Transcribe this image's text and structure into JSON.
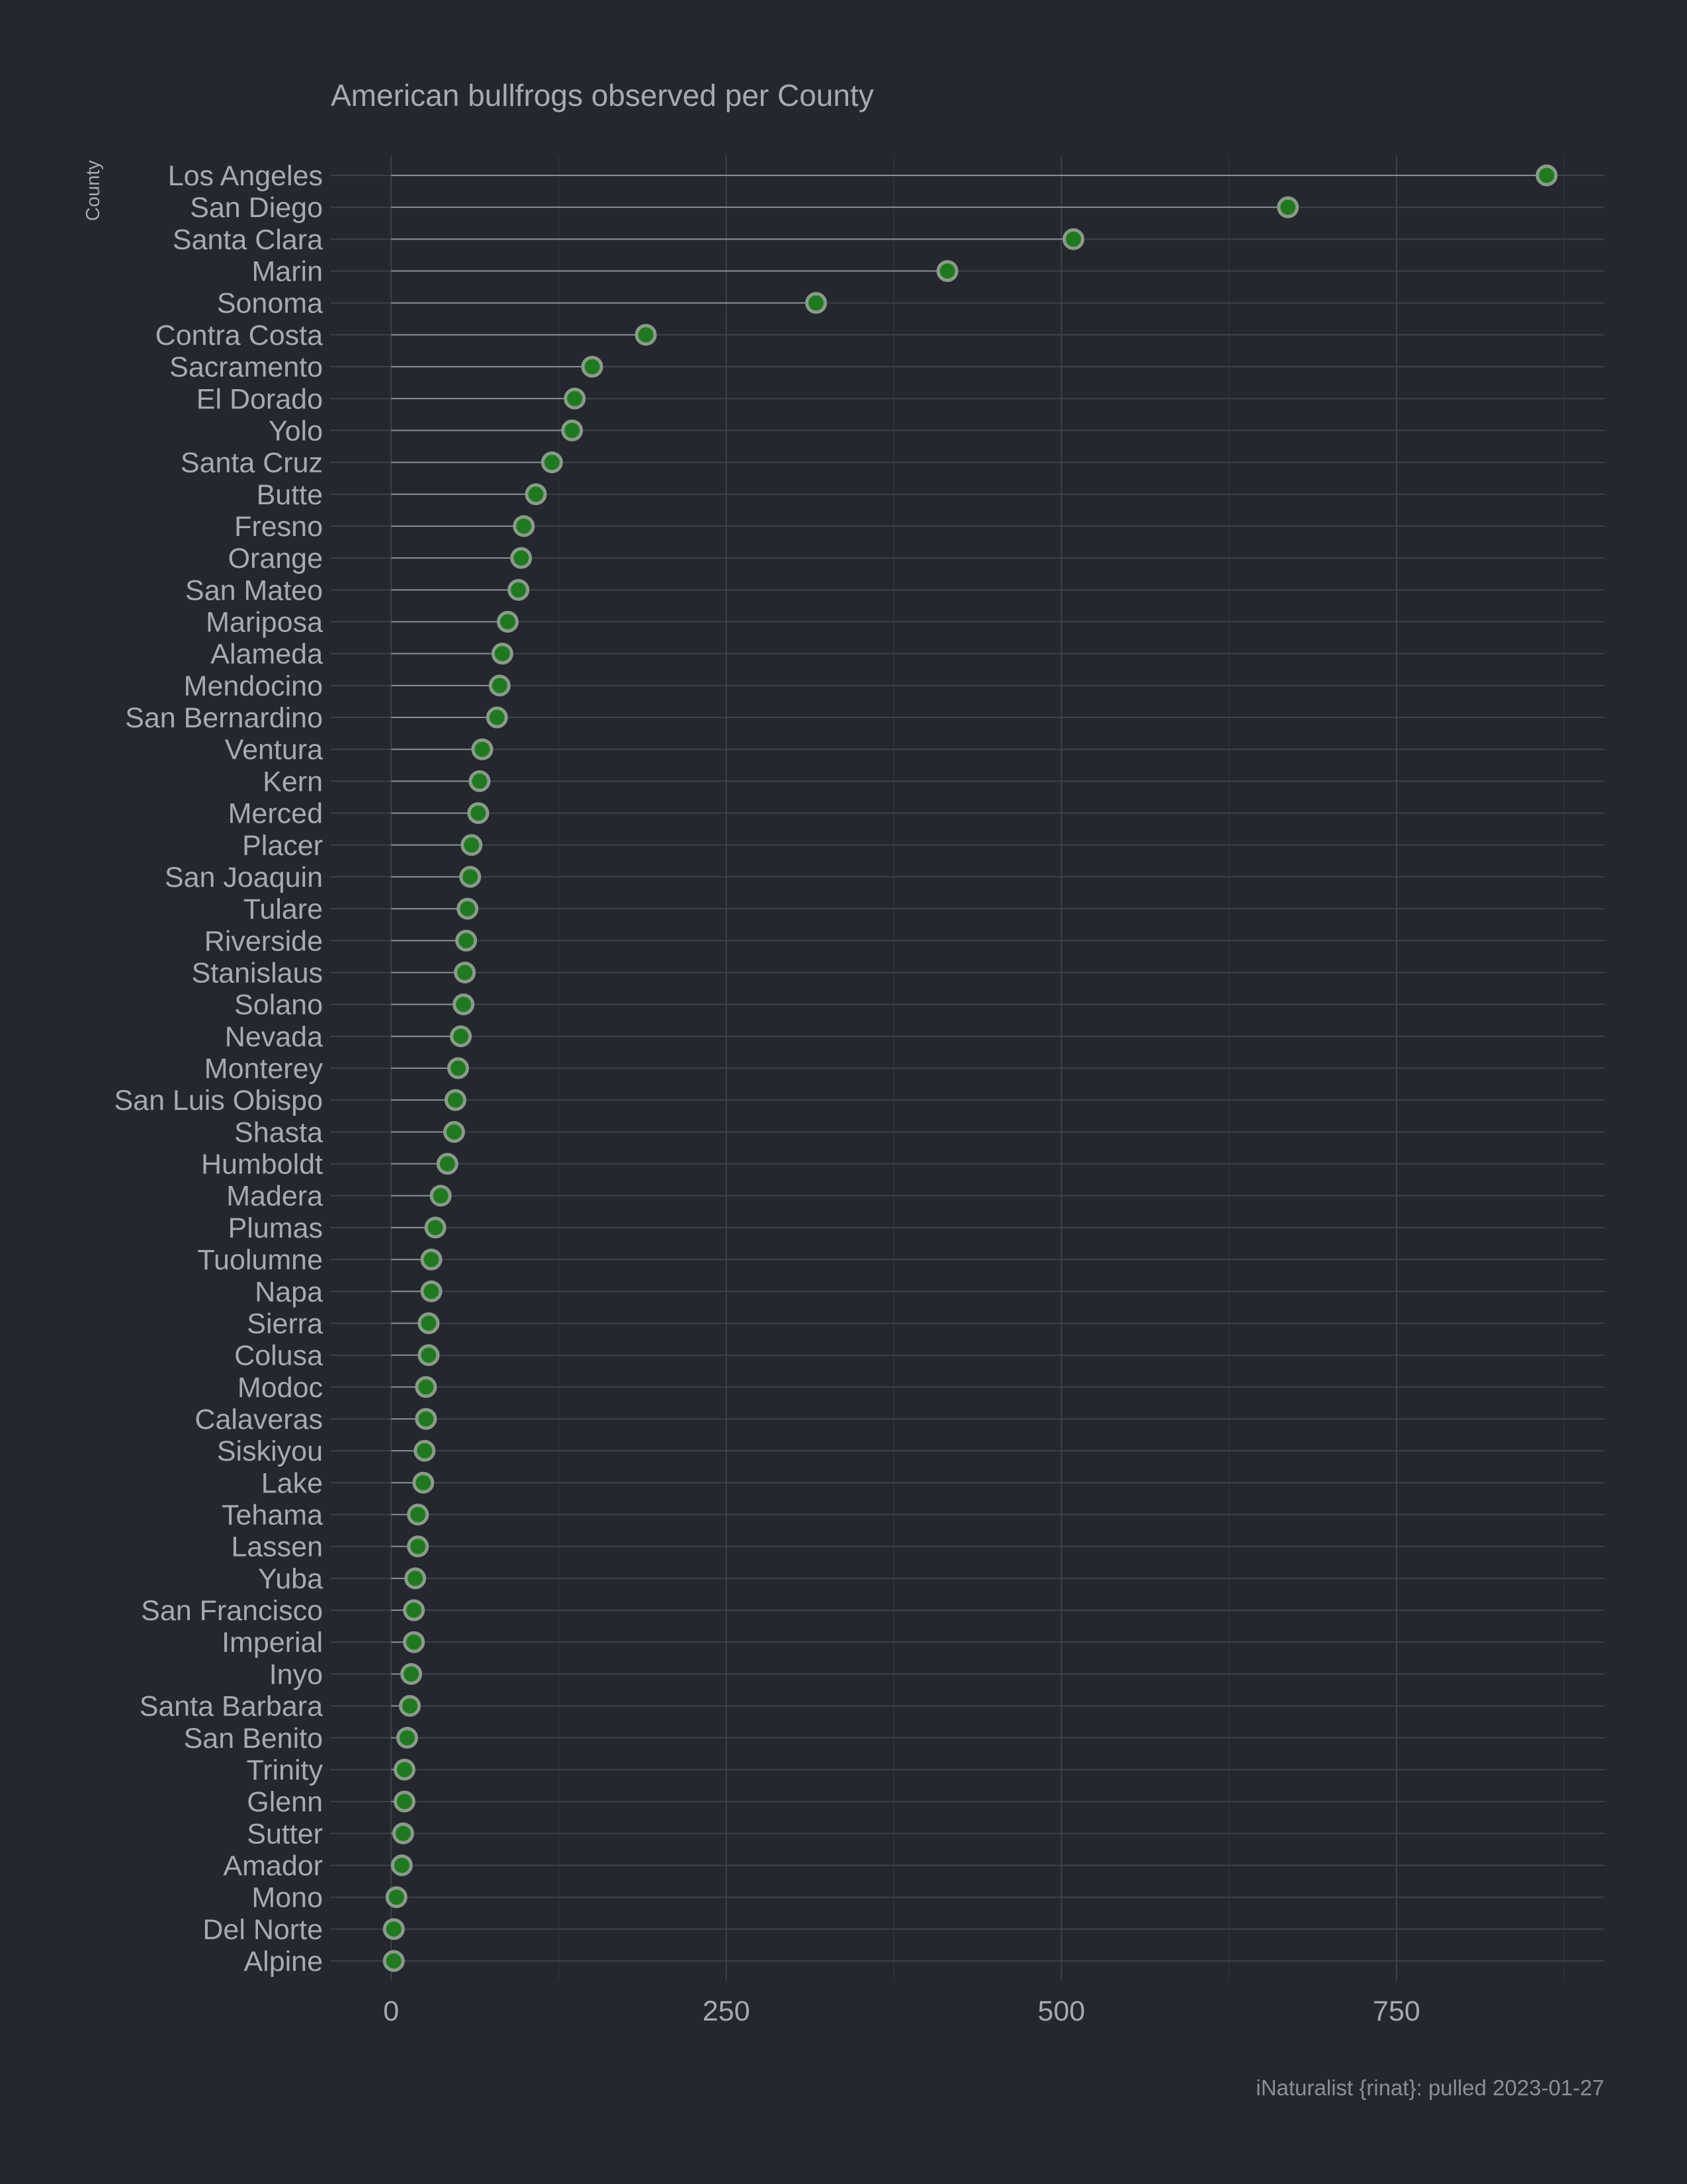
{
  "chart_data": {
    "type": "scatter",
    "style": "lollipop",
    "title": "American bullfrogs observed per County",
    "ylabel": "County",
    "xlabel": "",
    "caption": "iNaturalist {rinat}: pulled 2023-01-27",
    "xlim": [
      -45,
      905
    ],
    "x_ticks": [
      0,
      250,
      500,
      750
    ],
    "x_tick_labels": [
      "0",
      "250",
      "500",
      "750"
    ],
    "grid": true,
    "legend": "none",
    "colors": {
      "background": "#24272e",
      "text": "#a8aab0",
      "title": "#a8aab0",
      "grid_major": "#3d414a",
      "grid_minor": "#30333b",
      "segment": "#8a8e96",
      "point_fill": "#1f7a1f",
      "point_stroke": "#8a9a8a"
    },
    "categories": [
      "Los Angeles",
      "San Diego",
      "Santa Clara",
      "Marin",
      "Sonoma",
      "Contra Costa",
      "Sacramento",
      "El Dorado",
      "Yolo",
      "Santa Cruz",
      "Butte",
      "Fresno",
      "Orange",
      "San Mateo",
      "Mariposa",
      "Alameda",
      "Mendocino",
      "San Bernardino",
      "Ventura",
      "Kern",
      "Merced",
      "Placer",
      "San Joaquin",
      "Tulare",
      "Riverside",
      "Stanislaus",
      "Solano",
      "Nevada",
      "Monterey",
      "San Luis Obispo",
      "Shasta",
      "Humboldt",
      "Madera",
      "Plumas",
      "Tuolumne",
      "Napa",
      "Sierra",
      "Colusa",
      "Modoc",
      "Calaveras",
      "Siskiyou",
      "Lake",
      "Tehama",
      "Lassen",
      "Yuba",
      "San Francisco",
      "Imperial",
      "Inyo",
      "Santa Barbara",
      "San Benito",
      "Trinity",
      "Glenn",
      "Sutter",
      "Amador",
      "Mono",
      "Del Norte",
      "Alpine"
    ],
    "values": [
      862,
      669,
      509,
      415,
      317,
      190,
      150,
      137,
      135,
      120,
      108,
      99,
      97,
      95,
      87,
      83,
      81,
      79,
      68,
      66,
      65,
      60,
      59,
      57,
      56,
      55,
      54,
      52,
      50,
      48,
      47,
      42,
      37,
      33,
      30,
      30,
      28,
      28,
      26,
      26,
      25,
      24,
      20,
      20,
      18,
      17,
      17,
      15,
      14,
      12,
      10,
      10,
      9,
      8,
      4,
      2,
      2
    ]
  }
}
